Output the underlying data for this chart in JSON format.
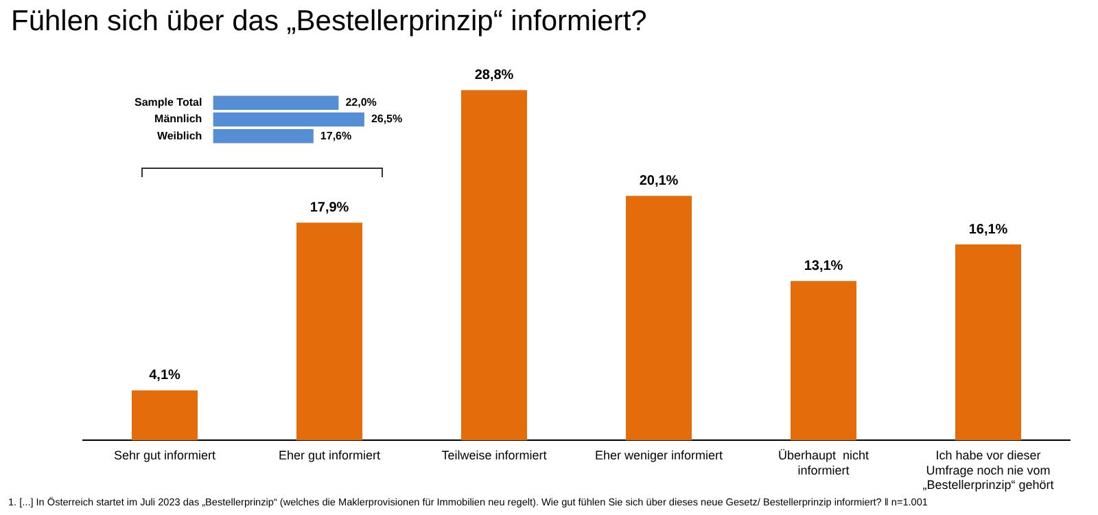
{
  "chart_data": [
    {
      "type": "bar",
      "title": "Fühlen sich über das „Bestellerprinzip“ informiert?",
      "categories": [
        "Sehr gut informiert",
        "Eher gut informiert",
        "Teilweise informiert",
        "Eher weniger informiert",
        "Überhaupt  nicht informiert",
        "Ich habe vor dieser Umfrage noch nie vom „Bestellerprinzip“ gehört"
      ],
      "values": [
        4.1,
        17.9,
        28.8,
        20.1,
        13.1,
        16.1
      ],
      "value_labels": [
        "4,1%",
        "17,9%",
        "28,8%",
        "20,1%",
        "13,1%",
        "16,1%"
      ],
      "color": "#e46c0a",
      "grid": false,
      "legend": false,
      "tick_labels": "x",
      "annotations": [
        "1. [...] In Österreich startet im Juli 2023 das „Bestellerprinzip“ (welches die Maklerprovisionen für Immobilien neu regelt). Wie gut fühlen Sie sich über dieses neue Gesetz/ Bestellerprinzip informiert? ‖ n=1.001"
      ]
    },
    {
      "type": "bar",
      "orientation": "horizontal",
      "categories": [
        "Sample Total",
        "Männlich",
        "Weiblich"
      ],
      "values": [
        22.0,
        26.5,
        17.6
      ],
      "value_labels": [
        "22,0%",
        "26,5%",
        "17,6%"
      ],
      "color": "#558ed5",
      "grid": false,
      "legend": false,
      "tick_labels": "y"
    }
  ]
}
